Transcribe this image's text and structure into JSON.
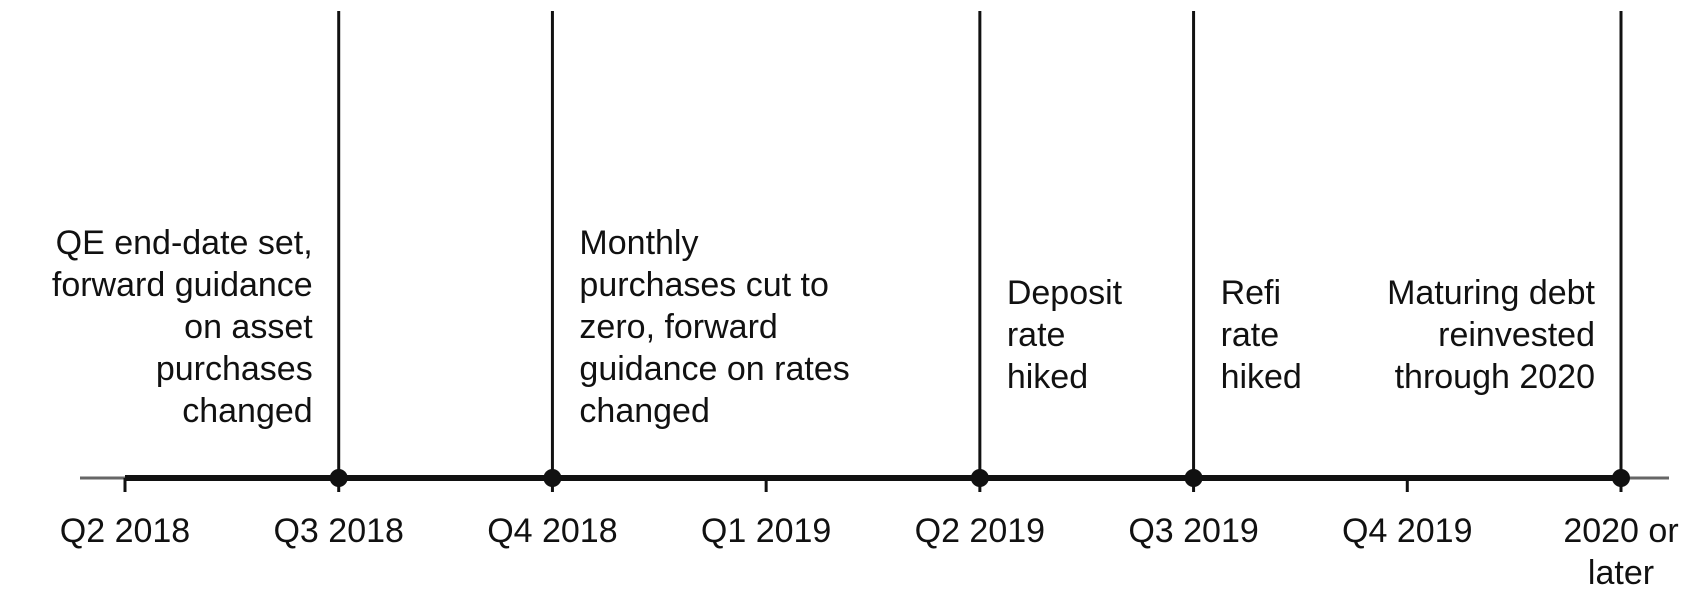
{
  "timeline": {
    "ticks": [
      {
        "label": [
          "Q2 2018"
        ]
      },
      {
        "label": [
          "Q3 2018"
        ]
      },
      {
        "label": [
          "Q4 2018"
        ]
      },
      {
        "label": [
          "Q1 2019"
        ]
      },
      {
        "label": [
          "Q2 2019"
        ]
      },
      {
        "label": [
          "Q3 2019"
        ]
      },
      {
        "label": [
          "Q4 2019"
        ]
      },
      {
        "label": [
          "2020 or",
          "later"
        ]
      }
    ],
    "events": [
      {
        "tick": 1,
        "side": "left",
        "lines": [
          "QE end-date set,",
          "forward guidance",
          "on asset",
          "purchases",
          "changed"
        ]
      },
      {
        "tick": 2,
        "side": "right",
        "lines": [
          "Monthly",
          "purchases cut to",
          "zero, forward",
          "guidance on rates",
          "changed"
        ]
      },
      {
        "tick": 4,
        "side": "right",
        "lines": [
          "Deposit",
          "rate",
          "hiked"
        ]
      },
      {
        "tick": 5,
        "side": "right",
        "lines": [
          "Refi",
          "rate",
          "hiked"
        ]
      },
      {
        "tick": 7,
        "side": "left",
        "lines": [
          "Maturing debt",
          "reinvested",
          "through 2020"
        ]
      }
    ]
  }
}
